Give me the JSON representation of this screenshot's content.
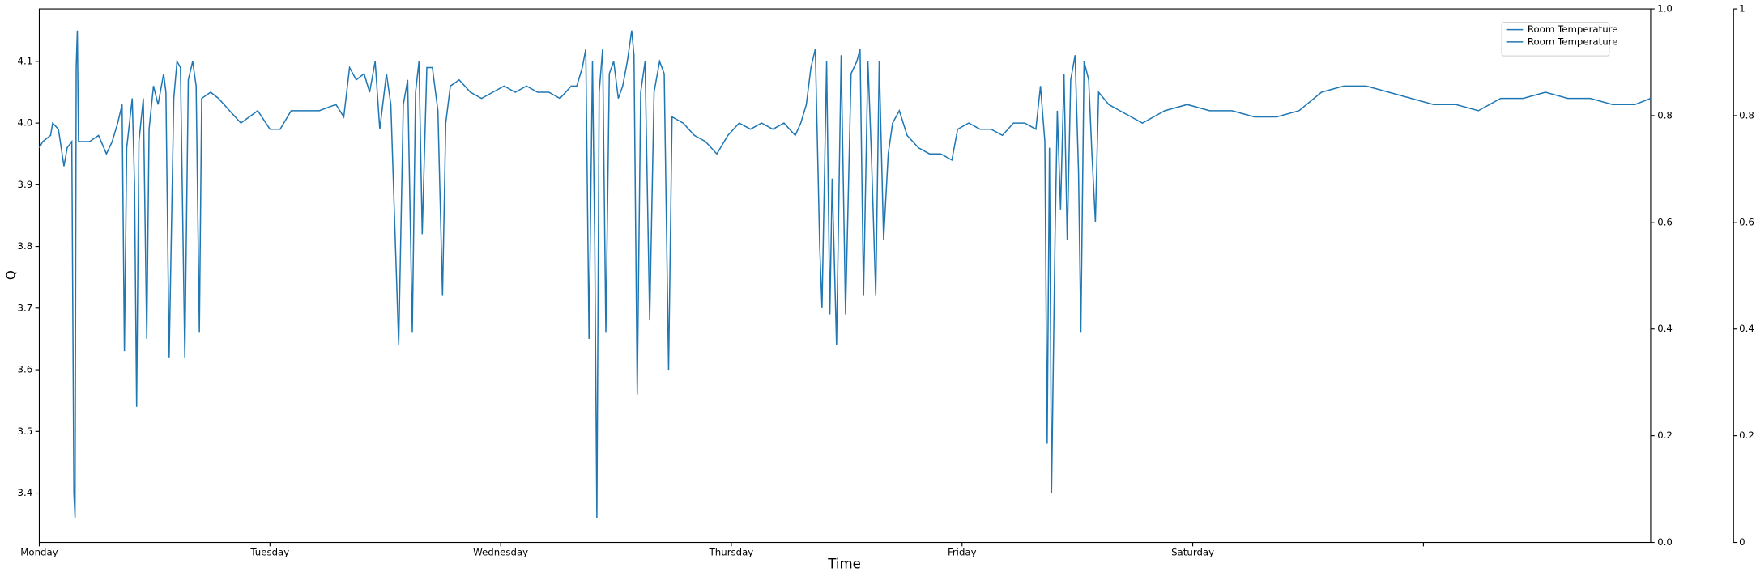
{
  "chart_data": {
    "type": "line",
    "xlabel": "Time",
    "ylabel": "Q",
    "x": [
      0,
      0.015,
      0.049,
      0.058,
      0.083,
      0.107,
      0.121,
      0.141,
      0.15,
      0.155,
      0.16,
      0.165,
      0.17,
      0.218,
      0.257,
      0.291,
      0.316,
      0.34,
      0.359,
      0.369,
      0.379,
      0.403,
      0.413,
      0.422,
      0.432,
      0.451,
      0.466,
      0.476,
      0.495,
      0.515,
      0.539,
      0.549,
      0.563,
      0.583,
      0.597,
      0.612,
      0.631,
      0.646,
      0.665,
      0.68,
      0.694,
      0.704,
      0.743,
      0.777,
      0.825,
      0.874,
      0.947,
      1.0,
      1.044,
      1.092,
      1.141,
      1.214,
      1.286,
      1.32,
      1.345,
      1.374,
      1.408,
      1.432,
      1.456,
      1.476,
      1.505,
      1.524,
      1.558,
      1.578,
      1.597,
      1.617,
      1.631,
      1.646,
      1.66,
      1.68,
      1.704,
      1.728,
      1.748,
      1.762,
      1.782,
      1.82,
      1.869,
      1.917,
      1.966,
      2.015,
      2.063,
      2.112,
      2.16,
      2.209,
      2.257,
      2.306,
      2.33,
      2.354,
      2.369,
      2.383,
      2.398,
      2.408,
      2.417,
      2.427,
      2.442,
      2.456,
      2.471,
      2.49,
      2.51,
      2.529,
      2.549,
      2.568,
      2.578,
      2.592,
      2.607,
      2.626,
      2.646,
      2.665,
      2.689,
      2.709,
      2.728,
      2.743,
      2.791,
      2.84,
      2.888,
      2.937,
      2.985,
      3.034,
      3.083,
      3.131,
      3.18,
      3.228,
      3.277,
      3.301,
      3.325,
      3.345,
      3.364,
      3.383,
      3.393,
      3.413,
      3.427,
      3.437,
      3.456,
      3.476,
      3.495,
      3.519,
      3.544,
      3.558,
      3.573,
      3.592,
      3.607,
      3.626,
      3.641,
      3.66,
      3.68,
      3.699,
      3.728,
      3.762,
      3.811,
      3.859,
      3.908,
      3.956,
      3.981,
      4.029,
      4.078,
      4.126,
      4.175,
      4.223,
      4.272,
      4.32,
      4.34,
      4.359,
      4.369,
      4.379,
      4.388,
      4.403,
      4.413,
      4.427,
      4.442,
      4.456,
      4.471,
      4.49,
      4.505,
      4.515,
      4.529,
      4.549,
      4.563,
      4.578,
      4.592,
      4.636,
      4.684,
      4.782,
      4.879,
      4.976,
      5.073,
      5.17,
      5.267,
      5.364,
      5.461,
      5.558,
      5.655,
      5.752,
      5.85,
      5.947,
      6.044,
      6.141,
      6.238,
      6.335,
      6.432,
      6.529,
      6.626,
      6.723,
      6.82,
      6.917,
      6.985
    ],
    "series": [
      {
        "name": "Room Temperature",
        "color": "#1f77b4",
        "values": [
          3.96,
          3.97,
          3.98,
          4.0,
          3.99,
          3.93,
          3.96,
          3.97,
          3.4,
          3.36,
          4.09,
          4.15,
          3.97,
          3.97,
          3.98,
          3.95,
          3.97,
          4.0,
          4.03,
          3.63,
          3.96,
          4.04,
          3.9,
          3.54,
          3.97,
          4.04,
          3.65,
          3.99,
          4.06,
          4.03,
          4.08,
          4.05,
          3.62,
          4.04,
          4.1,
          4.09,
          3.62,
          4.07,
          4.1,
          4.06,
          3.66,
          4.04,
          4.05,
          4.04,
          4.02,
          4.0,
          4.02,
          3.99,
          3.99,
          4.02,
          4.02,
          4.02,
          4.03,
          4.01,
          4.09,
          4.07,
          4.08,
          4.05,
          4.1,
          3.99,
          4.08,
          4.03,
          3.64,
          4.03,
          4.07,
          3.66,
          4.05,
          4.1,
          3.82,
          4.09,
          4.09,
          4.02,
          3.72,
          4.0,
          4.06,
          4.07,
          4.05,
          4.04,
          4.05,
          4.06,
          4.05,
          4.06,
          4.05,
          4.05,
          4.04,
          4.06,
          4.06,
          4.09,
          4.12,
          3.65,
          4.1,
          3.8,
          3.36,
          4.05,
          4.12,
          3.66,
          4.08,
          4.1,
          4.04,
          4.06,
          4.1,
          4.15,
          4.11,
          3.56,
          4.05,
          4.1,
          3.68,
          4.05,
          4.1,
          4.08,
          3.6,
          4.01,
          4.0,
          3.98,
          3.97,
          3.95,
          3.98,
          4.0,
          3.99,
          4.0,
          3.99,
          4.0,
          3.98,
          4.0,
          4.03,
          4.09,
          4.12,
          3.8,
          3.7,
          4.1,
          3.69,
          3.91,
          3.64,
          4.11,
          3.69,
          4.08,
          4.1,
          4.12,
          3.72,
          4.1,
          3.95,
          3.72,
          4.1,
          3.81,
          3.95,
          4.0,
          4.02,
          3.98,
          3.96,
          3.95,
          3.95,
          3.94,
          3.99,
          4.0,
          3.99,
          3.99,
          3.98,
          4.0,
          4.0,
          3.99,
          4.06,
          3.97,
          3.48,
          3.96,
          3.4,
          3.81,
          4.02,
          3.86,
          4.08,
          3.81,
          4.07,
          4.11,
          3.92,
          3.66,
          4.1,
          4.07,
          3.95,
          3.84,
          4.05,
          4.03,
          4.02,
          4.0,
          4.02,
          4.03,
          4.02,
          4.02,
          4.01,
          4.01,
          4.02,
          4.05,
          4.06,
          4.06,
          4.05,
          4.04,
          4.03,
          4.03,
          4.02,
          4.04,
          4.04,
          4.05,
          4.04,
          4.04,
          4.03,
          4.03,
          4.04
        ]
      },
      {
        "name": "Room Temperature",
        "color": "#1f77b4",
        "axis": "y2",
        "values": [
          null,
          null,
          null,
          null,
          null,
          null,
          null,
          null,
          null,
          null,
          null,
          null,
          null,
          null,
          null,
          null,
          null,
          null,
          null,
          null,
          null,
          null,
          null,
          null,
          null,
          null,
          null,
          null,
          null,
          null,
          null,
          null,
          null,
          null,
          null,
          null,
          null,
          null,
          null,
          null,
          null,
          null,
          null,
          null,
          null,
          null,
          null,
          null,
          null,
          null,
          null,
          null,
          null,
          null,
          null,
          null,
          null,
          null,
          null,
          null,
          null,
          null,
          null,
          null,
          null,
          null,
          null,
          null,
          null,
          null,
          null,
          null,
          null,
          null,
          null,
          null,
          null,
          null,
          null,
          null,
          null,
          null,
          null,
          null,
          null,
          null,
          null,
          null,
          null,
          null,
          null,
          null,
          null,
          null,
          null,
          null,
          null,
          null,
          null,
          null,
          null,
          null,
          null,
          null,
          null,
          null,
          null,
          null,
          null,
          null,
          null,
          null,
          null,
          null,
          null,
          null,
          null,
          null,
          null,
          null,
          null,
          null,
          null,
          null,
          null,
          null,
          null,
          null,
          null,
          null,
          null,
          null,
          null,
          null,
          null,
          null,
          null,
          null,
          null,
          null,
          null,
          null,
          null,
          null,
          null,
          null,
          null,
          null,
          null,
          null,
          null,
          null,
          null,
          null,
          null,
          null,
          null,
          null,
          null,
          null,
          null,
          null,
          null,
          null,
          null,
          null,
          null,
          null,
          null,
          null,
          null,
          null,
          null,
          null,
          null,
          null,
          null,
          null,
          null,
          null,
          null,
          null,
          null,
          null,
          null,
          null,
          null,
          null,
          null,
          null,
          null,
          null,
          null,
          null,
          null,
          null,
          null,
          null,
          null,
          null,
          null,
          null,
          null,
          null,
          null
        ]
      }
    ],
    "xlim": [
      0,
      6.985
    ],
    "xticks": [
      0,
      1,
      2,
      3,
      4,
      5,
      6
    ],
    "xticklabels": [
      "Monday",
      "Tuesday",
      "Wednesday",
      "Thursday",
      "Friday",
      "Saturday",
      null
    ],
    "ylim": [
      3.32,
      4.185
    ],
    "yticks": [
      3.4,
      3.5,
      3.6,
      3.7,
      3.8,
      3.9,
      {
        "value": 4,
        "label": "4.0"
      },
      4.1
    ],
    "y2lim": [
      0,
      1
    ],
    "y2ticks": [
      {
        "value": 0,
        "label": "0.0"
      },
      0.2,
      0.4,
      0.6,
      0.8,
      {
        "value": 1,
        "label": "1.0"
      }
    ],
    "y3lim": [
      0,
      1
    ],
    "y3ticks": [
      0,
      0.2,
      0.4,
      0.6,
      0.8,
      1
    ],
    "legend": "upper right"
  }
}
